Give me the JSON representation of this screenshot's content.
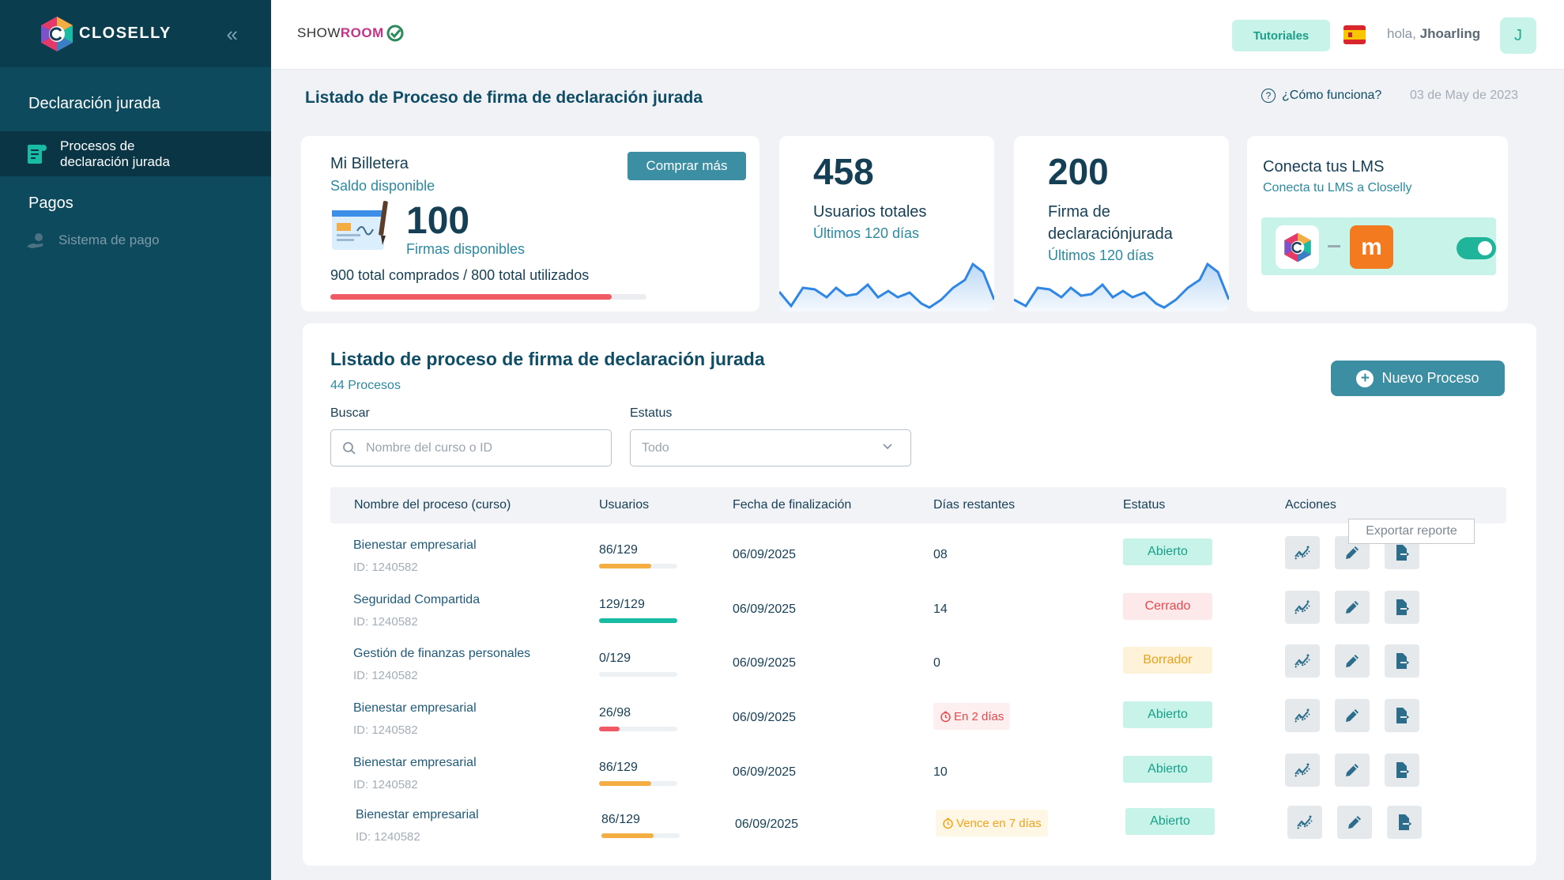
{
  "sidebar": {
    "brand": "CLOSELLY",
    "section1": "Declaración jurada",
    "active_item": "Procesos de declaración jurada",
    "section2": "Pagos",
    "item_payment": "Sistema de pago"
  },
  "topbar": {
    "showroom_a": "SHOW",
    "showroom_b": "ROOM",
    "tutoriales": "Tutoriales",
    "greeting_prefix": "hola,",
    "user_name": "Jhoarling",
    "avatar_initial": "J"
  },
  "header": {
    "title": "Listado de Proceso de firma de declaración jurada",
    "how": "¿Cómo funciona?",
    "date": "03 de May de 2023"
  },
  "wallet": {
    "title": "Mi Billetera",
    "subtitle": "Saldo disponible",
    "buy_label": "Comprar más",
    "available": "100",
    "available_label": "Firmas disponibles",
    "totals": "900 total comprados / 800 total utilizados",
    "used_fraction": 0.889
  },
  "stats": [
    {
      "value": "458",
      "label": "Usuarios totales",
      "sub": "Últimos 120 días"
    },
    {
      "value": "200",
      "label": "Firma de declaraciónjurada",
      "sub": "Últimos 120 días"
    }
  ],
  "lms": {
    "title": "Conecta tus LMS",
    "subtitle": "Conecta tu LMS a Closelly",
    "moodle_letter": "m",
    "enabled": true
  },
  "list": {
    "title": "Listado de proceso de firma de declaración jurada",
    "count": "44 Procesos",
    "new_button": "Nuevo Proceso",
    "search_label": "Buscar",
    "search_placeholder": "Nombre del curso o ID",
    "status_label": "Estatus",
    "status_value": "Todo",
    "columns": [
      "Nombre del proceso (curso)",
      "Usuarios",
      "Fecha de finalización",
      "Días restantes",
      "Estatus",
      "Acciones"
    ],
    "tooltip": "Exportar reporte",
    "rows": [
      {
        "name": "Bienestar empresarial",
        "id": "ID: 1240582",
        "users": "86/129",
        "fraction": 0.667,
        "bar_color": "#f4ad42",
        "date": "06/09/2025",
        "days": "08",
        "days_style": "plain",
        "status": "Abierto",
        "status_style": "open"
      },
      {
        "name": "Seguridad Compartida",
        "id": "ID: 1240582",
        "users": "129/129",
        "fraction": 1.0,
        "bar_color": "#18bba3",
        "date": "06/09/2025",
        "days": "14",
        "days_style": "plain",
        "status": "Cerrado",
        "status_style": "closed"
      },
      {
        "name": "Gestión de finanzas personales",
        "id": "ID: 1240582",
        "users": "0/129",
        "fraction": 0.0,
        "bar_color": "#f4ad42",
        "date": "06/09/2025",
        "days": "0",
        "days_style": "plain",
        "status": "Borrador",
        "status_style": "draft"
      },
      {
        "name": "Bienestar empresarial",
        "id": "ID: 1240582",
        "users": "26/98",
        "fraction": 0.265,
        "bar_color": "#ef5a64",
        "date": "06/09/2025",
        "days": "En 2 días",
        "days_style": "red",
        "status": "Abierto",
        "status_style": "open"
      },
      {
        "name": "Bienestar empresarial",
        "id": "ID: 1240582",
        "users": "86/129",
        "fraction": 0.667,
        "bar_color": "#f4ad42",
        "date": "06/09/2025",
        "days": "10",
        "days_style": "plain",
        "status": "Abierto",
        "status_style": "open"
      },
      {
        "name": "Bienestar empresarial",
        "id": "ID: 1240582",
        "users": "86/129",
        "fraction": 0.667,
        "bar_color": "#f4ad42",
        "date": "06/09/2025",
        "days": "Vence en 7 días",
        "days_style": "orange",
        "status": "Abierto",
        "status_style": "open"
      }
    ]
  },
  "icons": [
    "collapse-icon",
    "document-icon",
    "payment-icon",
    "check-circle-icon",
    "flag-spain-icon",
    "question-icon",
    "signature-icon",
    "search-icon",
    "chevron-down-icon",
    "plus-icon",
    "analytics-icon",
    "edit-icon",
    "export-icon",
    "clock-icon"
  ]
}
